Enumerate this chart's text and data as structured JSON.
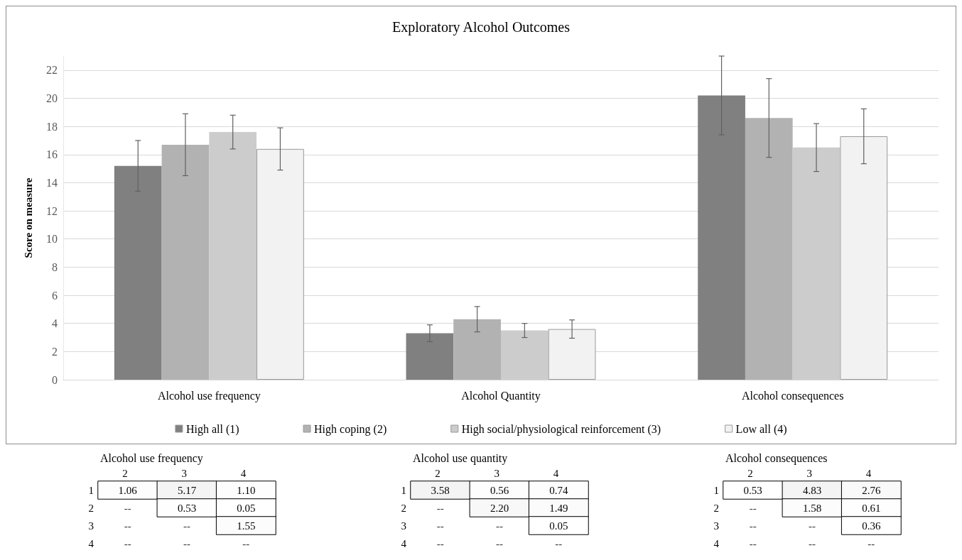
{
  "chart_data": [
    {
      "type": "bar",
      "title": "Exploratory Alcohol Outcomes",
      "ylabel": "Score on measure",
      "categories": [
        "Alcohol use frequency",
        "Alcohol Quantity",
        "Alcohol consequences"
      ],
      "series": [
        {
          "name": "High all (1)",
          "color": "#808080",
          "values": [
            15.2,
            3.3,
            20.2
          ],
          "errors": [
            1.8,
            0.6,
            2.8
          ]
        },
        {
          "name": "High coping (2)",
          "color": "#b2b2b2",
          "values": [
            16.7,
            4.3,
            18.6
          ],
          "errors": [
            2.2,
            0.9,
            2.8
          ]
        },
        {
          "name": "High social/physiological reinforcement (3)",
          "color": "#cccccc",
          "values": [
            17.6,
            3.5,
            16.5
          ],
          "errors": [
            1.2,
            0.5,
            1.7
          ]
        },
        {
          "name": "Low all (4)",
          "color": "#f2f2f2",
          "values": [
            16.4,
            3.6,
            17.3
          ],
          "errors": [
            1.5,
            0.65,
            1.95
          ]
        }
      ],
      "ylim": [
        0,
        23
      ],
      "yticks": [
        0,
        2,
        4,
        6,
        8,
        10,
        12,
        14,
        16,
        18,
        20,
        22
      ],
      "grid": "y",
      "legend": "bottom"
    },
    {
      "type": "heatmap",
      "title": "Alcohol use frequency",
      "categories": [
        "2",
        "3",
        "4"
      ],
      "y_categories": [
        "1",
        "2",
        "3",
        "4"
      ],
      "data_labels": true,
      "cells": [
        [
          1.06,
          5.17,
          1.1
        ],
        [
          null,
          0.53,
          0.05
        ],
        [
          null,
          null,
          1.55
        ],
        [
          null,
          null,
          null
        ]
      ],
      "cell_labels": [
        [
          "1.06",
          "5.17",
          "1.10"
        ],
        [
          "--",
          "0.53",
          "0.05"
        ],
        [
          "--",
          "--",
          "1.55"
        ],
        [
          "--",
          "--",
          "--"
        ]
      ]
    },
    {
      "type": "heatmap",
      "title": "Alcohol use quantity",
      "categories": [
        "2",
        "3",
        "4"
      ],
      "y_categories": [
        "1",
        "2",
        "3",
        "4"
      ],
      "data_labels": true,
      "cells": [
        [
          3.58,
          0.56,
          0.74
        ],
        [
          null,
          2.2,
          1.49
        ],
        [
          null,
          null,
          0.05
        ],
        [
          null,
          null,
          null
        ]
      ],
      "cell_labels": [
        [
          "3.58",
          "0.56",
          "0.74"
        ],
        [
          "--",
          "2.20",
          "1.49"
        ],
        [
          "--",
          "--",
          "0.05"
        ],
        [
          "--",
          "--",
          "--"
        ]
      ]
    },
    {
      "type": "heatmap",
      "title": "Alcohol consequences",
      "categories": [
        "2",
        "3",
        "4"
      ],
      "y_categories": [
        "1",
        "2",
        "3",
        "4"
      ],
      "data_labels": true,
      "cells": [
        [
          0.53,
          4.83,
          2.76
        ],
        [
          null,
          1.58,
          0.61
        ],
        [
          null,
          null,
          0.36
        ],
        [
          null,
          null,
          null
        ]
      ],
      "cell_labels": [
        [
          "0.53",
          "4.83",
          "2.76"
        ],
        [
          "--",
          "1.58",
          "0.61"
        ],
        [
          "--",
          "--",
          "0.36"
        ],
        [
          "--",
          "--",
          "--"
        ]
      ]
    }
  ]
}
